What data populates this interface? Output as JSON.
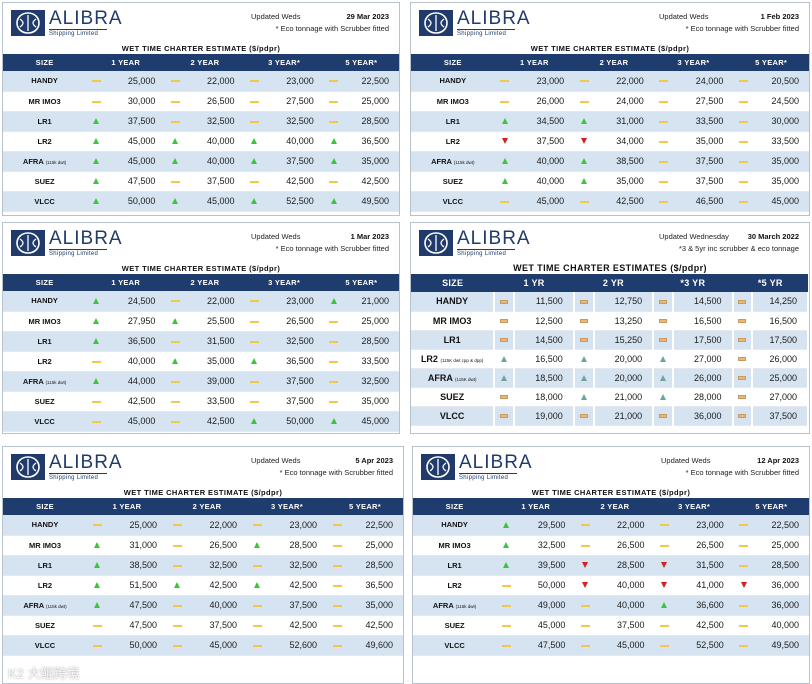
{
  "brand": {
    "name": "ALIBRA",
    "sub": "Shipping Limited"
  },
  "colors": {
    "header": "#1e3d6e",
    "stripe": "#d6e4f2",
    "up": "#3cc43a",
    "down": "#d42020",
    "flat": "#f2c84b"
  },
  "watermark": "K2 大鲲跨境",
  "panels": [
    {
      "updated": "Updated Weds",
      "date": "29 Mar 2023",
      "note": "* Eco tonnage with Scrubber fitted",
      "title": "WET TIME CHARTER ESTIMATE ($/pdpr)",
      "headers": [
        "SIZE",
        "1 YEAR",
        "2 YEAR",
        "3 YEAR*",
        "5 YEAR*"
      ],
      "rows": [
        {
          "size": "HANDY",
          "sub": "",
          "vals": [
            "25,000",
            "22,000",
            "23,000",
            "22,500"
          ],
          "ind": [
            "flat",
            "flat",
            "flat",
            "flat"
          ]
        },
        {
          "size": "MR IMO3",
          "sub": "",
          "vals": [
            "30,000",
            "26,500",
            "27,500",
            "25,000"
          ],
          "ind": [
            "flat",
            "flat",
            "flat",
            "flat"
          ]
        },
        {
          "size": "LR1",
          "sub": "",
          "vals": [
            "37,500",
            "32,500",
            "32,500",
            "28,500"
          ],
          "ind": [
            "up",
            "flat",
            "flat",
            "flat"
          ]
        },
        {
          "size": "LR2",
          "sub": "",
          "vals": [
            "45,000",
            "40,000",
            "40,000",
            "36,500"
          ],
          "ind": [
            "up",
            "up",
            "up",
            "up"
          ]
        },
        {
          "size": "AFRA",
          "sub": "(115k dwt)",
          "vals": [
            "45,000",
            "40,000",
            "37,500",
            "35,000"
          ],
          "ind": [
            "up",
            "up",
            "up",
            "up"
          ]
        },
        {
          "size": "SUEZ",
          "sub": "",
          "vals": [
            "47,500",
            "37,500",
            "42,500",
            "42,500"
          ],
          "ind": [
            "up",
            "flat",
            "flat",
            "flat"
          ]
        },
        {
          "size": "VLCC",
          "sub": "",
          "vals": [
            "50,000",
            "45,000",
            "52,500",
            "49,500"
          ],
          "ind": [
            "up",
            "up",
            "up",
            "up"
          ]
        }
      ]
    },
    {
      "updated": "Updated Weds",
      "date": "1 Feb 2023",
      "note": "* Eco tonnage with Scrubber fitted",
      "title": "WET TIME CHARTER ESTIMATE ($/pdpr)",
      "headers": [
        "SIZE",
        "1 YEAR",
        "2 YEAR",
        "3 YEAR*",
        "5 YEAR*"
      ],
      "rows": [
        {
          "size": "HANDY",
          "sub": "",
          "vals": [
            "23,000",
            "22,000",
            "24,000",
            "20,500"
          ],
          "ind": [
            "flat",
            "flat",
            "flat",
            "flat"
          ]
        },
        {
          "size": "MR IMO3",
          "sub": "",
          "vals": [
            "26,000",
            "24,000",
            "27,500",
            "24,500"
          ],
          "ind": [
            "flat",
            "flat",
            "flat",
            "flat"
          ]
        },
        {
          "size": "LR1",
          "sub": "",
          "vals": [
            "34,500",
            "31,000",
            "33,500",
            "30,000"
          ],
          "ind": [
            "up",
            "up",
            "flat",
            "flat"
          ]
        },
        {
          "size": "LR2",
          "sub": "",
          "vals": [
            "37,500",
            "34,000",
            "35,000",
            "33,500"
          ],
          "ind": [
            "down",
            "down",
            "flat",
            "flat"
          ]
        },
        {
          "size": "AFRA",
          "sub": "(115k dwt)",
          "vals": [
            "40,000",
            "38,500",
            "37,500",
            "35,000"
          ],
          "ind": [
            "up",
            "up",
            "flat",
            "flat"
          ]
        },
        {
          "size": "SUEZ",
          "sub": "",
          "vals": [
            "40,000",
            "35,000",
            "37,500",
            "35,000"
          ],
          "ind": [
            "up",
            "up",
            "flat",
            "flat"
          ]
        },
        {
          "size": "VLCC",
          "sub": "",
          "vals": [
            "45,000",
            "42,500",
            "46,500",
            "45,000"
          ],
          "ind": [
            "flat",
            "flat",
            "flat",
            "flat"
          ]
        }
      ]
    },
    {
      "updated": "Updated Weds",
      "date": "1 Mar 2023",
      "note": "* Eco tonnage with Scrubber fitted",
      "title": "WET TIME CHARTER ESTIMATE ($/pdpr)",
      "headers": [
        "SIZE",
        "1 YEAR",
        "2 YEAR",
        "3 YEAR*",
        "5 YEAR*"
      ],
      "rows": [
        {
          "size": "HANDY",
          "sub": "",
          "vals": [
            "24,500",
            "22,000",
            "23,000",
            "21,000"
          ],
          "ind": [
            "up",
            "flat",
            "flat",
            "up"
          ]
        },
        {
          "size": "MR IMO3",
          "sub": "",
          "vals": [
            "27,950",
            "25,500",
            "26,500",
            "25,000"
          ],
          "ind": [
            "up",
            "up",
            "flat",
            "flat"
          ]
        },
        {
          "size": "LR1",
          "sub": "",
          "vals": [
            "36,500",
            "31,500",
            "32,500",
            "28,500"
          ],
          "ind": [
            "up",
            "flat",
            "flat",
            "flat"
          ]
        },
        {
          "size": "LR2",
          "sub": "",
          "vals": [
            "40,000",
            "35,000",
            "36,500",
            "33,500"
          ],
          "ind": [
            "flat",
            "up",
            "up",
            "flat"
          ]
        },
        {
          "size": "AFRA",
          "sub": "(115k dwt)",
          "vals": [
            "44,000",
            "39,000",
            "37,500",
            "32,500"
          ],
          "ind": [
            "up",
            "flat",
            "flat",
            "flat"
          ]
        },
        {
          "size": "SUEZ",
          "sub": "",
          "vals": [
            "42,500",
            "33,500",
            "37,500",
            "35,000"
          ],
          "ind": [
            "flat",
            "flat",
            "flat",
            "flat"
          ]
        },
        {
          "size": "VLCC",
          "sub": "",
          "vals": [
            "45,000",
            "42,500",
            "50,000",
            "45,000"
          ],
          "ind": [
            "flat",
            "flat",
            "up",
            "up"
          ]
        }
      ]
    },
    {
      "updated": "Updated Wednesday",
      "date": "30 March 2022",
      "note": "*3 & 5yr inc scrubber & eco tonnage",
      "title": "WET TIME CHARTER ESTIMATES ($/pdpr)",
      "headers": [
        "SIZE",
        "1 YR",
        "2 YR",
        "*3 YR",
        "*5 YR"
      ],
      "rows": [
        {
          "size": "HANDY",
          "sub": "",
          "vals": [
            "11,500",
            "12,750",
            "14,500",
            "14,250"
          ],
          "ind": [
            "flat",
            "flat",
            "flat",
            "flat"
          ]
        },
        {
          "size": "MR IMO3",
          "sub": "",
          "vals": [
            "12,500",
            "13,250",
            "16,500",
            "16,500"
          ],
          "ind": [
            "flat",
            "flat",
            "flat",
            "flat"
          ]
        },
        {
          "size": "LR1",
          "sub": "",
          "vals": [
            "14,500",
            "15,250",
            "17,500",
            "17,500"
          ],
          "ind": [
            "flat",
            "flat",
            "flat",
            "flat"
          ]
        },
        {
          "size": "LR2",
          "sub": "(115K dwt cpp & dpp)",
          "vals": [
            "16,500",
            "20,000",
            "27,000",
            "26,000"
          ],
          "ind": [
            "up",
            "up",
            "up",
            "flat"
          ]
        },
        {
          "size": "AFRA",
          "sub": "(115K dwt)",
          "vals": [
            "18,500",
            "20,000",
            "26,000",
            "25,000"
          ],
          "ind": [
            "up",
            "up",
            "up",
            "flat"
          ]
        },
        {
          "size": "SUEZ",
          "sub": "",
          "vals": [
            "18,000",
            "21,000",
            "28,000",
            "27,000"
          ],
          "ind": [
            "flat",
            "up",
            "up",
            "flat"
          ]
        },
        {
          "size": "VLCC",
          "sub": "",
          "vals": [
            "19,000",
            "21,000",
            "36,000",
            "37,500"
          ],
          "ind": [
            "flat",
            "flat",
            "flat",
            "flat"
          ]
        }
      ]
    },
    {
      "updated": "Updated Weds",
      "date": "5 Apr 2023",
      "note": "* Eco tonnage with Scrubber fitted",
      "title": "WET TIME CHARTER ESTIMATE ($/pdpr)",
      "headers": [
        "SIZE",
        "1 YEAR",
        "2 YEAR",
        "3 YEAR*",
        "5 YEAR*"
      ],
      "rows": [
        {
          "size": "HANDY",
          "sub": "",
          "vals": [
            "25,000",
            "22,000",
            "23,000",
            "22,500"
          ],
          "ind": [
            "flat",
            "flat",
            "flat",
            "flat"
          ]
        },
        {
          "size": "MR IMO3",
          "sub": "",
          "vals": [
            "31,000",
            "26,500",
            "28,500",
            "25,000"
          ],
          "ind": [
            "up",
            "flat",
            "up",
            "flat"
          ]
        },
        {
          "size": "LR1",
          "sub": "",
          "vals": [
            "38,500",
            "32,500",
            "32,500",
            "28,500"
          ],
          "ind": [
            "up",
            "flat",
            "flat",
            "flat"
          ]
        },
        {
          "size": "LR2",
          "sub": "",
          "vals": [
            "51,500",
            "42,500",
            "42,500",
            "36,500"
          ],
          "ind": [
            "up",
            "up",
            "up",
            "flat"
          ]
        },
        {
          "size": "AFRA",
          "sub": "(115k dwt)",
          "vals": [
            "47,500",
            "40,000",
            "37,500",
            "35,000"
          ],
          "ind": [
            "up",
            "flat",
            "flat",
            "flat"
          ]
        },
        {
          "size": "SUEZ",
          "sub": "",
          "vals": [
            "47,500",
            "37,500",
            "42,500",
            "42,500"
          ],
          "ind": [
            "flat",
            "flat",
            "flat",
            "flat"
          ]
        },
        {
          "size": "VLCC",
          "sub": "",
          "vals": [
            "50,000",
            "45,000",
            "52,600",
            "49,600"
          ],
          "ind": [
            "flat",
            "flat",
            "flat",
            "flat"
          ]
        }
      ]
    },
    {
      "updated": "Updated Weds",
      "date": "12 Apr 2023",
      "note": "* Eco tonnage with Scrubber fitted",
      "title": "WET TIME CHARTER ESTIMATE ($/pdpr)",
      "headers": [
        "SIZE",
        "1 YEAR",
        "2 YEAR",
        "3 YEAR*",
        "5 YEAR*"
      ],
      "rows": [
        {
          "size": "HANDY",
          "sub": "",
          "vals": [
            "29,500",
            "22,000",
            "23,000",
            "22,500"
          ],
          "ind": [
            "up",
            "flat",
            "flat",
            "flat"
          ]
        },
        {
          "size": "MR IMO3",
          "sub": "",
          "vals": [
            "32,500",
            "26,500",
            "26,500",
            "25,000"
          ],
          "ind": [
            "up",
            "flat",
            "flat",
            "flat"
          ]
        },
        {
          "size": "LR1",
          "sub": "",
          "vals": [
            "39,500",
            "28,500",
            "31,500",
            "28,500"
          ],
          "ind": [
            "up",
            "down",
            "down",
            "flat"
          ]
        },
        {
          "size": "LR2",
          "sub": "",
          "vals": [
            "50,000",
            "40,000",
            "41,000",
            "36,000"
          ],
          "ind": [
            "flat",
            "down",
            "down",
            "down"
          ]
        },
        {
          "size": "AFRA",
          "sub": "(115k dwt)",
          "vals": [
            "49,000",
            "40,000",
            "36,600",
            "36,000"
          ],
          "ind": [
            "flat",
            "flat",
            "up",
            "flat"
          ]
        },
        {
          "size": "SUEZ",
          "sub": "",
          "vals": [
            "45,000",
            "37,500",
            "42,500",
            "40,000"
          ],
          "ind": [
            "flat",
            "flat",
            "flat",
            "flat"
          ]
        },
        {
          "size": "VLCC",
          "sub": "",
          "vals": [
            "47,500",
            "45,000",
            "52,500",
            "49,500"
          ],
          "ind": [
            "flat",
            "flat",
            "flat",
            "flat"
          ]
        }
      ]
    }
  ]
}
